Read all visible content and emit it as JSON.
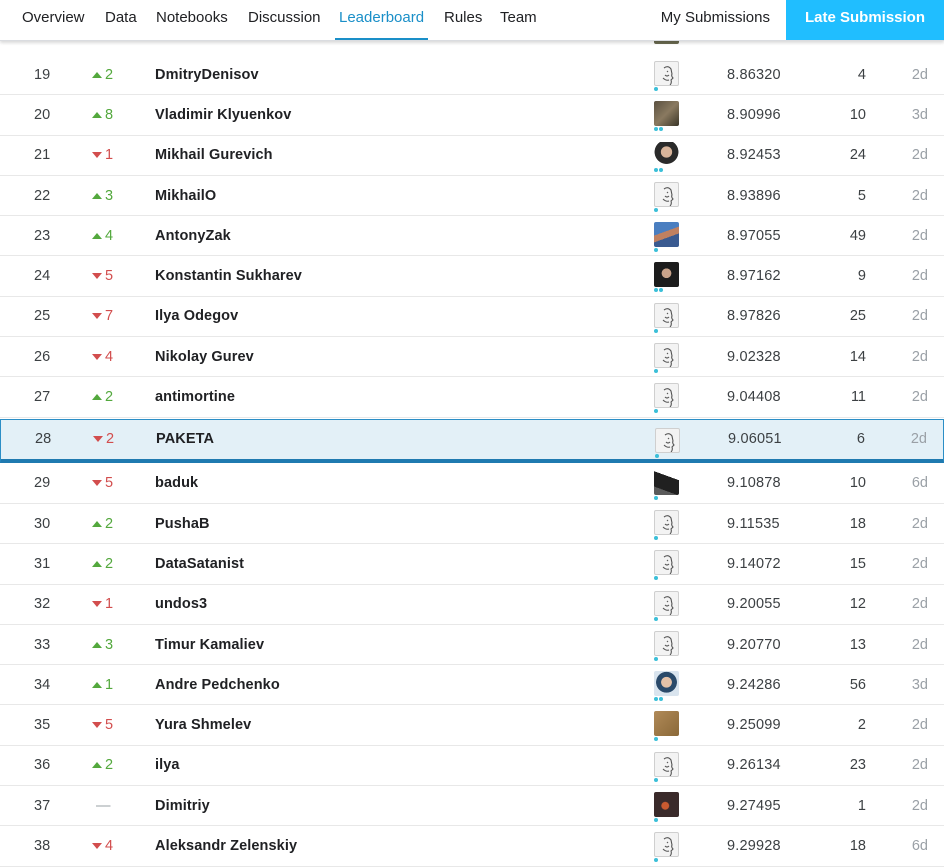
{
  "nav": {
    "tabs": [
      "Overview",
      "Data",
      "Notebooks",
      "Discussion",
      "Leaderboard",
      "Rules",
      "Team"
    ],
    "active_tab": "Leaderboard",
    "my_submissions": "My Submissions",
    "late_submission": "Late Submission"
  },
  "colors": {
    "accent": "#1a8fc8",
    "button": "#20beff",
    "rank_up": "#53a83d",
    "rank_down": "#d24d4d",
    "highlight_row": "#e3f0f7",
    "member_dot": "#3bbfd8"
  },
  "leaderboard": {
    "rows": [
      {
        "rank": "19",
        "change": "up",
        "delta": "2",
        "team": "DmitryDenisov",
        "avatar": "default-avatar",
        "members": 1,
        "score": "8.86320",
        "entries": "4",
        "last": "2d"
      },
      {
        "rank": "20",
        "change": "up",
        "delta": "8",
        "team": "Vladimir Klyuenkov",
        "avatar": "photo-avatar",
        "members": 2,
        "score": "8.90996",
        "entries": "10",
        "last": "3d"
      },
      {
        "rank": "21",
        "change": "down",
        "delta": "1",
        "team": "Mikhail Gurevich",
        "avatar": "photo-avatar",
        "members": 2,
        "score": "8.92453",
        "entries": "24",
        "last": "2d"
      },
      {
        "rank": "22",
        "change": "up",
        "delta": "3",
        "team": "MikhailO",
        "avatar": "default-avatar",
        "members": 1,
        "score": "8.93896",
        "entries": "5",
        "last": "2d"
      },
      {
        "rank": "23",
        "change": "up",
        "delta": "4",
        "team": "AntonyZak",
        "avatar": "photo-avatar",
        "members": 1,
        "score": "8.97055",
        "entries": "49",
        "last": "2d"
      },
      {
        "rank": "24",
        "change": "down",
        "delta": "5",
        "team": "Konstantin Sukharev",
        "avatar": "photo-avatar",
        "members": 2,
        "score": "8.97162",
        "entries": "9",
        "last": "2d"
      },
      {
        "rank": "25",
        "change": "down",
        "delta": "7",
        "team": "Ilya Odegov",
        "avatar": "default-avatar",
        "members": 1,
        "score": "8.97826",
        "entries": "25",
        "last": "2d"
      },
      {
        "rank": "26",
        "change": "down",
        "delta": "4",
        "team": "Nikolay Gurev",
        "avatar": "default-avatar",
        "members": 1,
        "score": "9.02328",
        "entries": "14",
        "last": "2d"
      },
      {
        "rank": "27",
        "change": "up",
        "delta": "2",
        "team": "antimortine",
        "avatar": "default-avatar",
        "members": 1,
        "score": "9.04408",
        "entries": "11",
        "last": "2d"
      },
      {
        "rank": "28",
        "change": "down",
        "delta": "2",
        "team": "PAKETA",
        "avatar": "default-avatar",
        "members": 1,
        "score": "9.06051",
        "entries": "6",
        "last": "2d",
        "mine": true
      },
      {
        "rank": "29",
        "change": "down",
        "delta": "5",
        "team": "baduk",
        "avatar": "photo-avatar",
        "members": 1,
        "score": "9.10878",
        "entries": "10",
        "last": "6d"
      },
      {
        "rank": "30",
        "change": "up",
        "delta": "2",
        "team": "PushaB",
        "avatar": "default-avatar",
        "members": 1,
        "score": "9.11535",
        "entries": "18",
        "last": "2d"
      },
      {
        "rank": "31",
        "change": "up",
        "delta": "2",
        "team": "DataSatanist",
        "avatar": "default-avatar",
        "members": 1,
        "score": "9.14072",
        "entries": "15",
        "last": "2d"
      },
      {
        "rank": "32",
        "change": "down",
        "delta": "1",
        "team": "undos3",
        "avatar": "default-avatar",
        "members": 1,
        "score": "9.20055",
        "entries": "12",
        "last": "2d"
      },
      {
        "rank": "33",
        "change": "up",
        "delta": "3",
        "team": "Timur Kamaliev",
        "avatar": "default-avatar",
        "members": 1,
        "score": "9.20770",
        "entries": "13",
        "last": "2d"
      },
      {
        "rank": "34",
        "change": "up",
        "delta": "1",
        "team": "Andre Pedchenko",
        "avatar": "photo-avatar",
        "members": 2,
        "score": "9.24286",
        "entries": "56",
        "last": "3d"
      },
      {
        "rank": "35",
        "change": "down",
        "delta": "5",
        "team": "Yura Shmelev",
        "avatar": "photo-avatar",
        "members": 1,
        "score": "9.25099",
        "entries": "2",
        "last": "2d"
      },
      {
        "rank": "36",
        "change": "up",
        "delta": "2",
        "team": "ilya",
        "avatar": "default-avatar",
        "members": 1,
        "score": "9.26134",
        "entries": "23",
        "last": "2d"
      },
      {
        "rank": "37",
        "change": "none",
        "delta": "—",
        "team": "Dimitriy",
        "avatar": "photo-avatar",
        "members": 1,
        "score": "9.27495",
        "entries": "1",
        "last": "2d"
      },
      {
        "rank": "38",
        "change": "down",
        "delta": "4",
        "team": "Aleksandr Zelenskiy",
        "avatar": "default-avatar",
        "members": 1,
        "score": "9.29928",
        "entries": "18",
        "last": "6d"
      }
    ]
  }
}
